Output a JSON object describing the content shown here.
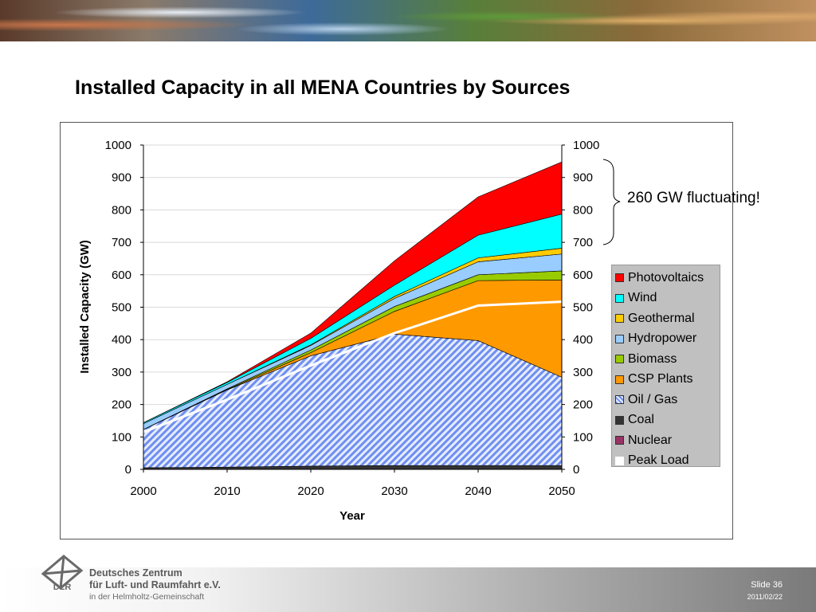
{
  "slide": {
    "title": "Installed Capacity in all MENA Countries by Sources",
    "annotation": "260 GW fluctuating!",
    "slide_number": "Slide 36",
    "date": "2011/02/22",
    "org": {
      "line1": "Deutsches Zentrum",
      "line2": "für Luft- und Raumfahrt e.V.",
      "line3": "in der Helmholtz-Gemeinschaft",
      "logo_text": "DLR"
    }
  },
  "chart_data": {
    "type": "area",
    "stacked": true,
    "xlabel": "Year",
    "ylabel": "Installed Capacity (GW)",
    "x": [
      2000,
      2010,
      2020,
      2030,
      2040,
      2050
    ],
    "xticks": [
      "2000",
      "2010",
      "2020",
      "2030",
      "2040",
      "2050"
    ],
    "ylim": [
      0,
      1000
    ],
    "yticks": [
      "0",
      "100",
      "200",
      "300",
      "400",
      "500",
      "600",
      "700",
      "800",
      "900",
      "1000"
    ],
    "secondary_yticks": [
      "0",
      "100",
      "200",
      "300",
      "400",
      "500",
      "600",
      "700",
      "800",
      "900",
      "1000"
    ],
    "grid": true,
    "legend_position": "right",
    "series": [
      {
        "name": "Nuclear",
        "color": "#993366",
        "values": [
          0,
          0,
          0,
          0,
          0,
          0
        ]
      },
      {
        "name": "Coal",
        "color": "#333333",
        "values": [
          5,
          7,
          10,
          12,
          12,
          12
        ]
      },
      {
        "name": "Oil / Gas",
        "color": "#6f8ff0",
        "pattern": "hatch",
        "values": [
          118,
          238,
          340,
          405,
          385,
          272
        ]
      },
      {
        "name": "CSP Plants",
        "color": "#ff9900",
        "values": [
          0,
          1,
          10,
          70,
          185,
          300
        ]
      },
      {
        "name": "Biomass",
        "color": "#99cc00",
        "values": [
          0,
          2,
          8,
          15,
          18,
          28
        ]
      },
      {
        "name": "Hydropower",
        "color": "#99ccff",
        "values": [
          18,
          14,
          14,
          25,
          40,
          52
        ]
      },
      {
        "name": "Geothermal",
        "color": "#ffcc00",
        "values": [
          0,
          0,
          2,
          6,
          12,
          18
        ]
      },
      {
        "name": "Wind",
        "color": "#00ffff",
        "values": [
          3,
          6,
          20,
          35,
          70,
          105
        ]
      },
      {
        "name": "Photovoltaics",
        "color": "#ff0000",
        "values": [
          0,
          2,
          16,
          75,
          118,
          161
        ]
      }
    ],
    "peak_load": {
      "name": "Peak Load",
      "color": "#ffffff",
      "values": [
        115,
        215,
        320,
        420,
        505,
        517
      ]
    },
    "legend_order": [
      "Photovoltaics",
      "Wind",
      "Geothermal",
      "Hydropower",
      "Biomass",
      "CSP Plants",
      "Oil / Gas",
      "Coal",
      "Nuclear",
      "Peak Load"
    ]
  }
}
